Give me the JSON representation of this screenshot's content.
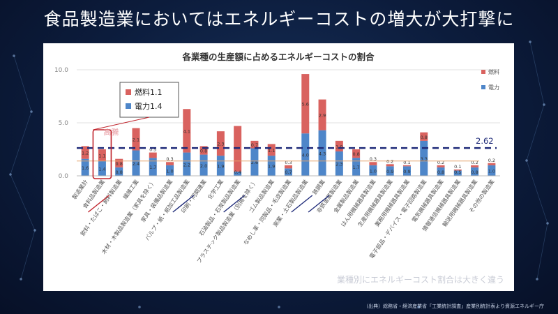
{
  "slide": {
    "title": "食品製造業においてはエネルギーコストの増大が大打撃に",
    "source": "（出典）総務省・経済産業省「工業統計調査」産業別統計表より資源エネルギー庁"
  },
  "colors": {
    "fuel": "#d9625f",
    "electricity": "#4e86c9",
    "threshold": "#1e2a78",
    "highlight": "#c0262e",
    "underline": "#1e2a78"
  },
  "chart_data": {
    "type": "bar",
    "stacked": true,
    "title": "各業種の生産額に占めるエネルギーコストの割合",
    "ylim": [
      0,
      10
    ],
    "yticks": [
      "0.0",
      "5.0",
      "10.0"
    ],
    "categories": [
      "製造業計",
      "食料品製造業",
      "飲料・たばこ・飼料製造業",
      "繊維工業",
      "木材・木製品製造業（家具を除く）",
      "家具・装備品製造業",
      "パルプ・紙・紙加工品製造業",
      "印刷・同関連業",
      "化学工業",
      "石油製品・石炭製品製造業",
      "プラスチック製品製造業（別掲を除く）",
      "ゴム製品製造業",
      "なめし革・同製品・毛皮製造業",
      "窯業・土石製品製造業",
      "鉄鋼業",
      "非鉄金属製造業",
      "金属製品製造業",
      "はん用機械器具製造業",
      "生産用機械器具製造業",
      "業務用機械器具製造業",
      "電子部品・デバイス・電子回路製造業",
      "電気機械器具製造業",
      "情報通信機械器具製造業",
      "輸送用機械器具製造業",
      "その他の製造業"
    ],
    "series": [
      {
        "name": "電力",
        "values": [
          1.6,
          1.4,
          0.8,
          2.4,
          1.7,
          1.0,
          2.2,
          2.0,
          1.9,
          0.4,
          2.6,
          1.9,
          0.7,
          4.0,
          4.3,
          2.3,
          1.7,
          1.0,
          0.9,
          0.9,
          3.3,
          0.8,
          0.5,
          0.8,
          1.0
        ],
        "labels": [
          "1.6",
          "1.4",
          "0.8",
          "2.4",
          "1.7",
          "1.0",
          "2.2",
          "2.0",
          "1.9",
          "0.4",
          "2.6",
          "1.9",
          "0.7",
          "4.0",
          "4.3",
          "2.3",
          "1.7",
          "1.0",
          "0.9",
          "0.9",
          "3.3",
          "0.8",
          "0.5",
          "0.8",
          "1.0"
        ]
      },
      {
        "name": "燃料",
        "values": [
          1.2,
          1.1,
          0.8,
          2.1,
          0.5,
          0.3,
          4.1,
          0.8,
          2.3,
          4.3,
          0.7,
          1.1,
          0.3,
          5.6,
          2.9,
          1.0,
          0.8,
          0.3,
          0.2,
          0.1,
          0.8,
          0.2,
          0.1,
          0.2,
          0.2
        ],
        "labels": [
          "1.2",
          "1.1",
          "0.8",
          "2.1",
          "0.5",
          "0.3",
          "4.1",
          "0.8",
          "2.3",
          "",
          "0.7",
          "1.1",
          "0.3",
          "5.6",
          "2.9",
          "1.0",
          "0.8",
          "0.3",
          "0.2",
          "0.1",
          "0.8",
          "0.2",
          "0.1",
          "0.2",
          "0.2"
        ]
      }
    ],
    "legend": {
      "placement": "top-right",
      "items": [
        "燃料",
        "電力"
      ]
    },
    "annotations": {
      "threshold_value": 2.62,
      "threshold_label": "2.62",
      "highlight_label": "高騰",
      "callout": {
        "fuel": "燃料1.1",
        "electricity": "電力1.4"
      },
      "underlined_categories": [
        1,
        6,
        9,
        13,
        14
      ],
      "caption": "業種別にエネルギーコスト割合は大きく違う"
    }
  }
}
